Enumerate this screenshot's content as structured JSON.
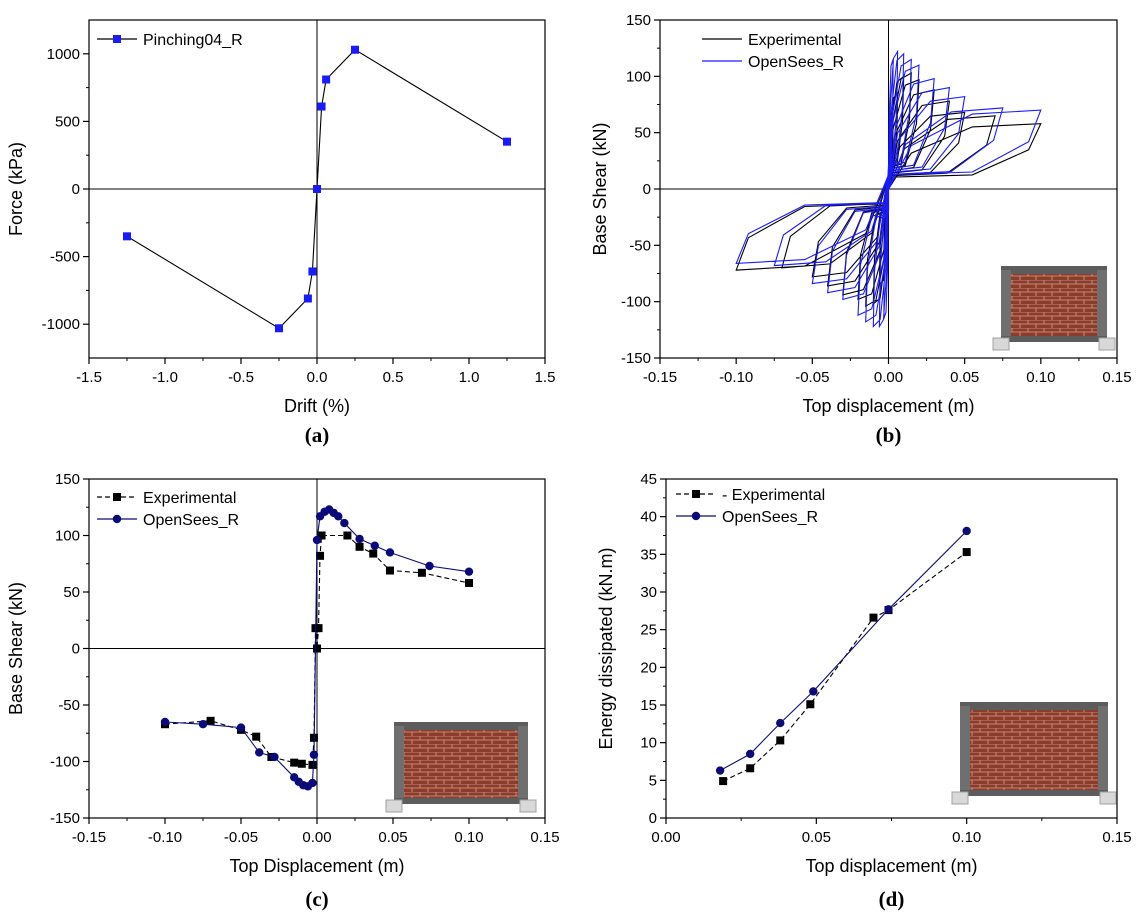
{
  "colors": {
    "experimental": "#000000",
    "opensees": "#1a1aff",
    "opensees_dark": "#0a0a7a",
    "brick": "#8b3a2a",
    "frame": "#6f6f6f"
  },
  "chart_data": [
    {
      "id": "a",
      "type": "line",
      "panel_label": "(a)",
      "xlabel": "Drift (%)",
      "ylabel": "Force (kPa)",
      "xlim": [
        -1.5,
        1.5
      ],
      "ylim": [
        -1250,
        1250
      ],
      "xticks": [
        -1.5,
        -1.0,
        -0.5,
        0.0,
        0.5,
        1.0,
        1.5
      ],
      "xtick_labels": [
        "-1.5",
        "-1.0",
        "-0.5",
        "0.0",
        "0.5",
        "1.0",
        "1.5"
      ],
      "yticks": [
        -1000,
        -500,
        0,
        500,
        1000
      ],
      "ytick_labels": [
        "-1000",
        "-500",
        "0",
        "500",
        "1000"
      ],
      "legend_position": "top-left",
      "series": [
        {
          "name": "Pinching04_R",
          "style": "line-square-blue",
          "x": [
            -1.25,
            -0.25,
            -0.06,
            -0.03,
            0.0,
            0.03,
            0.06,
            0.25,
            1.25
          ],
          "y": [
            -350,
            -1030,
            -810,
            -610,
            0,
            610,
            810,
            1030,
            350
          ]
        }
      ]
    },
    {
      "id": "b",
      "type": "line",
      "panel_label": "(b)",
      "xlabel": "Top displacement (m)",
      "ylabel": "Base Shear (kN)",
      "xlim": [
        -0.15,
        0.15
      ],
      "ylim": [
        -150,
        150
      ],
      "xticks": [
        -0.15,
        -0.1,
        -0.05,
        0.0,
        0.05,
        0.1,
        0.15
      ],
      "xtick_labels": [
        "-0.15",
        "-0.10",
        "-0.05",
        "0.00",
        "0.05",
        "0.10",
        "0.15"
      ],
      "yticks": [
        -150,
        -100,
        -50,
        0,
        50,
        100,
        150
      ],
      "ytick_labels": [
        "-150",
        "-100",
        "-50",
        "0",
        "50",
        "100",
        "150"
      ],
      "legend_position": "top-right",
      "series": [
        {
          "name": "Experimental",
          "style": "hysteresis-black",
          "cycles": [
            {
              "d": 0.003,
              "fp": 60,
              "fn": -60
            },
            {
              "d": 0.006,
              "fp": 85,
              "fn": -85
            },
            {
              "d": 0.01,
              "fp": 100,
              "fn": -102
            },
            {
              "d": 0.015,
              "fp": 103,
              "fn": -104
            },
            {
              "d": 0.02,
              "fp": 97,
              "fn": -98
            },
            {
              "d": 0.03,
              "fp": 88,
              "fn": -94
            },
            {
              "d": 0.04,
              "fp": 78,
              "fn": -86
            },
            {
              "d": 0.05,
              "fp": 68,
              "fn": -78
            },
            {
              "d": 0.07,
              "fp": 65,
              "fn": -70
            },
            {
              "d": 0.1,
              "fp": 58,
              "fn": -72
            }
          ]
        },
        {
          "name": "OpenSees_R",
          "style": "hysteresis-blue",
          "cycles": [
            {
              "d": 0.003,
              "fp": 115,
              "fn": -115
            },
            {
              "d": 0.006,
              "fp": 122,
              "fn": -122
            },
            {
              "d": 0.01,
              "fp": 120,
              "fn": -122
            },
            {
              "d": 0.015,
              "fp": 115,
              "fn": -118
            },
            {
              "d": 0.02,
              "fp": 110,
              "fn": -112
            },
            {
              "d": 0.03,
              "fp": 98,
              "fn": -98
            },
            {
              "d": 0.04,
              "fp": 90,
              "fn": -92
            },
            {
              "d": 0.05,
              "fp": 82,
              "fn": -84
            },
            {
              "d": 0.075,
              "fp": 72,
              "fn": -68
            },
            {
              "d": 0.1,
              "fp": 70,
              "fn": -66
            }
          ]
        }
      ]
    },
    {
      "id": "c",
      "type": "line",
      "panel_label": "(c)",
      "xlabel": "Top Displacement (m)",
      "ylabel": "Base Shear (kN)",
      "xlim": [
        -0.15,
        0.15
      ],
      "ylim": [
        -150,
        150
      ],
      "xticks": [
        -0.15,
        -0.1,
        -0.05,
        0.0,
        0.05,
        0.1,
        0.15
      ],
      "xtick_labels": [
        "-0.15",
        "-0.10",
        "-0.05",
        "0.00",
        "0.05",
        "0.10",
        "0.15"
      ],
      "yticks": [
        -150,
        -100,
        -50,
        0,
        50,
        100,
        150
      ],
      "ytick_labels": [
        "-150",
        "-100",
        "-50",
        "0",
        "50",
        "100",
        "150"
      ],
      "legend_position": "top-left",
      "series": [
        {
          "name": "Experimental",
          "style": "dashed-square-black",
          "x": [
            -0.1,
            -0.07,
            -0.05,
            -0.04,
            -0.03,
            -0.015,
            -0.01,
            -0.003,
            -0.002,
            -0.001,
            0.0,
            0.001,
            0.002,
            0.003,
            0.02,
            0.028,
            0.037,
            0.048,
            0.069,
            0.1
          ],
          "y": [
            -67,
            -64,
            -72,
            -78,
            -96,
            -101,
            -102,
            -103,
            -79,
            18,
            0,
            18,
            82,
            100,
            100,
            90,
            84,
            69,
            67,
            58
          ]
        },
        {
          "name": "OpenSees_R",
          "style": "line-circle-navy",
          "x": [
            -0.1,
            -0.075,
            -0.05,
            -0.038,
            -0.028,
            -0.015,
            -0.012,
            -0.009,
            -0.006,
            -0.003,
            -0.002,
            0.0,
            0.002,
            0.005,
            0.008,
            0.011,
            0.014,
            0.018,
            0.028,
            0.038,
            0.048,
            0.074,
            0.1
          ],
          "y": [
            -65,
            -67,
            -70,
            -92,
            -96,
            -114,
            -118,
            -121,
            -122,
            -119,
            -94,
            96,
            117,
            121,
            123,
            120,
            117,
            111,
            97,
            91,
            85,
            73,
            68
          ]
        }
      ]
    },
    {
      "id": "d",
      "type": "line",
      "panel_label": "(d)",
      "xlabel": "Top displacement (m)",
      "ylabel": "Energy dissipated (kN.m)",
      "xlim": [
        0.0,
        0.15
      ],
      "ylim": [
        0,
        45
      ],
      "xticks": [
        0.0,
        0.05,
        0.1,
        0.15
      ],
      "xtick_labels": [
        "0.00",
        "0.05",
        "0.10",
        "0.15"
      ],
      "yticks": [
        0,
        5,
        10,
        15,
        20,
        25,
        30,
        35,
        40,
        45
      ],
      "ytick_labels": [
        "0",
        "5",
        "10",
        "15",
        "20",
        "25",
        "30",
        "35",
        "40",
        "45"
      ],
      "legend_position": "top-left",
      "series": [
        {
          "name": "- Experimental",
          "style": "dashed-square-black",
          "x": [
            0.019,
            0.028,
            0.038,
            0.048,
            0.069,
            0.074,
            0.1
          ],
          "y": [
            4.9,
            6.6,
            10.3,
            15.1,
            26.6,
            27.6,
            35.3
          ]
        },
        {
          "name": "OpenSees_R",
          "style": "line-circle-navy",
          "x": [
            0.018,
            0.028,
            0.038,
            0.049,
            0.074,
            0.1
          ],
          "y": [
            6.3,
            8.5,
            12.6,
            16.8,
            27.7,
            38.1
          ]
        }
      ]
    }
  ]
}
